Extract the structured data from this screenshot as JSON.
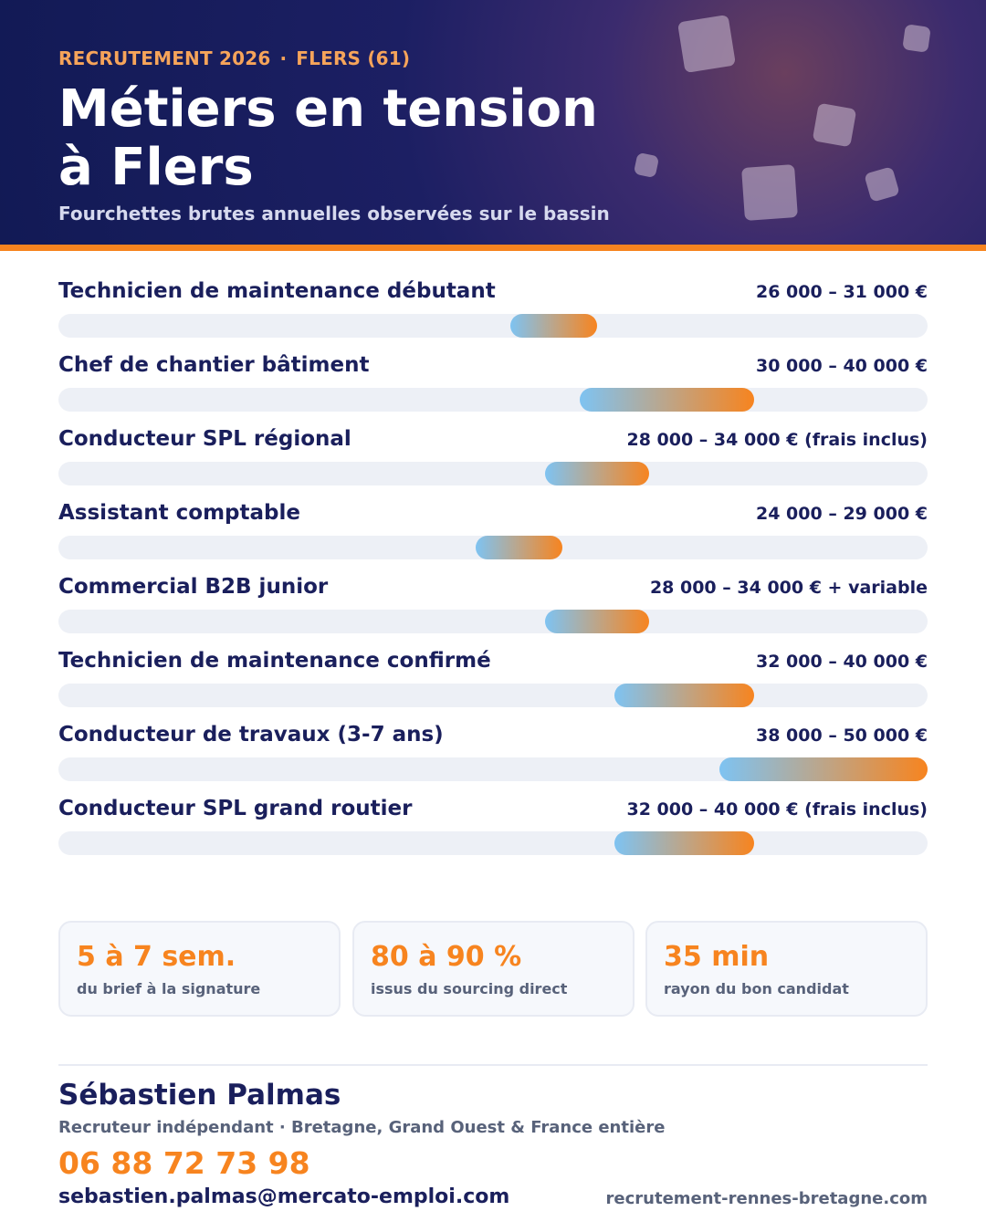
{
  "header": {
    "kicker_left": "RECRUTEMENT 2026",
    "kicker_sep": "·",
    "kicker_right": "FLERS (61)",
    "title_line1": "Métiers en tension",
    "title_line2": "à Flers",
    "subtitle": "Fourchettes brutes annuelles observées sur le bassin"
  },
  "colors": {
    "navy": "#1a1f5c",
    "orange": "#f7841f",
    "light_blue": "#7ec3f2",
    "track": "#edf0f6"
  },
  "chart_data": {
    "type": "bar",
    "orientation": "horizontal-range",
    "unit": "€",
    "xlim": [
      0,
      50000
    ],
    "grid": false,
    "rows": [
      {
        "label": "Technicien de maintenance débutant",
        "range_text": "26 000 – 31 000 €",
        "min": 26000,
        "max": 31000
      },
      {
        "label": "Chef de chantier bâtiment",
        "range_text": "30 000 – 40 000 €",
        "min": 30000,
        "max": 40000
      },
      {
        "label": "Conducteur SPL régional",
        "range_text": "28 000 – 34 000 € (frais inclus)",
        "min": 28000,
        "max": 34000
      },
      {
        "label": "Assistant comptable",
        "range_text": "24 000 – 29 000 €",
        "min": 24000,
        "max": 29000
      },
      {
        "label": "Commercial B2B junior",
        "range_text": "28 000 – 34 000 € + variable",
        "min": 28000,
        "max": 34000
      },
      {
        "label": "Technicien de maintenance confirmé",
        "range_text": "32 000 – 40 000 €",
        "min": 32000,
        "max": 40000
      },
      {
        "label": "Conducteur de travaux (3-7 ans)",
        "range_text": "38 000 – 50 000 €",
        "min": 38000,
        "max": 50000
      },
      {
        "label": "Conducteur SPL grand routier",
        "range_text": "32 000 – 40 000 € (frais inclus)",
        "min": 32000,
        "max": 40000
      }
    ]
  },
  "stats": [
    {
      "value": "5 à 7 sem.",
      "label": "du brief à la signature"
    },
    {
      "value": "80 à 90 %",
      "label": "issus du sourcing direct"
    },
    {
      "value": "35 min",
      "label": "rayon du bon candidat"
    }
  ],
  "contact": {
    "name": "Sébastien Palmas",
    "role": "Recruteur indépendant · Bretagne, Grand Ouest & France entière",
    "phone": "06 88 72 73 98",
    "email": "sebastien.palmas@mercato-emploi.com",
    "website": "recrutement-rennes-bretagne.com"
  }
}
